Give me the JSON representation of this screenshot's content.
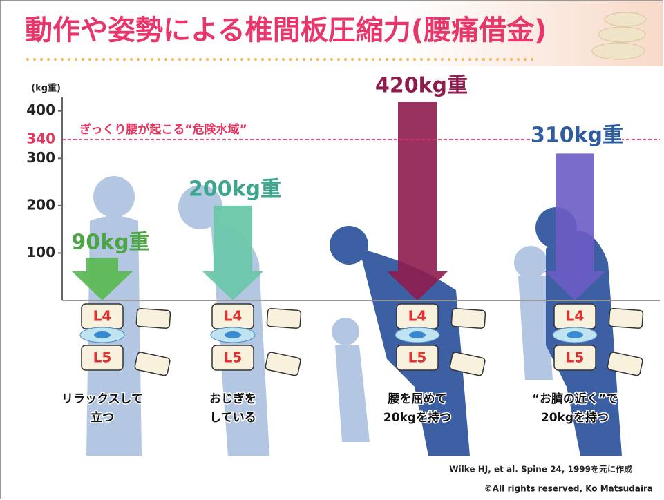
{
  "chart_data": {
    "type": "bar",
    "title": "動作や姿勢による椎間板圧縮力(腰痛借金)",
    "y_label": "(kg重)",
    "categories": [
      [
        "リラックスして",
        "立つ"
      ],
      [
        "おじぎを",
        "している"
      ],
      [
        "腰を屈めて",
        "20kgを持つ"
      ],
      [
        "“お臍の近く”で",
        "20kgを持つ"
      ]
    ],
    "values": [
      90,
      200,
      420,
      310
    ],
    "value_labels": [
      "90kg重",
      "200kg重",
      "420kg重",
      "310kg重"
    ],
    "colors": [
      "#5dbb55",
      "#6cc8aa",
      "#8e1c4c",
      "#6a5cc4"
    ],
    "label_colors": [
      "#4ea545",
      "#3ea58e",
      "#8e1c4c",
      "#2e5c9c"
    ],
    "ylim": [
      0,
      420
    ],
    "yticks": [
      100,
      200,
      300,
      400
    ],
    "danger_line": {
      "value": 340,
      "label": "ぎっくり腰が起こる“危険水域”",
      "color": "#e8355e"
    },
    "vertebrae": [
      "L4",
      "L5"
    ],
    "source": "Wilke HJ, et al. Spine 24, 1999を元に作成",
    "copyright": "©All rights reserved, Ko Matsudaira"
  }
}
